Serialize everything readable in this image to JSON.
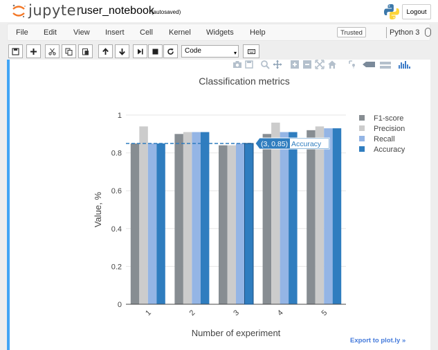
{
  "header": {
    "logo_text": "jupyter",
    "notebook_name": "user_notebook",
    "autosave_status": "(autosaved)",
    "logout_label": "Logout"
  },
  "menubar": {
    "items": [
      "File",
      "Edit",
      "View",
      "Insert",
      "Cell",
      "Kernel",
      "Widgets",
      "Help"
    ],
    "trusted_label": "Trusted",
    "kernel_name": "Python 3"
  },
  "toolbar": {
    "cell_type": "Code"
  },
  "plot_footer": {
    "export_label": "Export to plot.ly »"
  },
  "hover": {
    "point_label": "(3, 0.85)",
    "series_label": "Accuracy"
  },
  "chart_data": {
    "type": "bar",
    "title": "Classification metrics",
    "xlabel": "Number of experiment",
    "ylabel": "Value, %",
    "categories": [
      "1",
      "2",
      "3",
      "4",
      "5"
    ],
    "ylim": [
      0,
      1
    ],
    "yticks": [
      "0",
      "0.2",
      "0.4",
      "0.6",
      "0.8",
      "1"
    ],
    "legend_position": "top-right",
    "series": [
      {
        "name": "F1-score",
        "color": "#878d92",
        "values": [
          0.85,
          0.9,
          0.84,
          0.9,
          0.92
        ]
      },
      {
        "name": "Precision",
        "color": "#cccccc",
        "values": [
          0.94,
          0.91,
          0.84,
          0.96,
          0.94
        ]
      },
      {
        "name": "Recall",
        "color": "#94b5e5",
        "values": [
          0.85,
          0.91,
          0.85,
          0.91,
          0.93
        ]
      },
      {
        "name": "Accuracy",
        "color": "#2f7dbf",
        "values": [
          0.85,
          0.91,
          0.85,
          0.91,
          0.93
        ]
      }
    ]
  }
}
